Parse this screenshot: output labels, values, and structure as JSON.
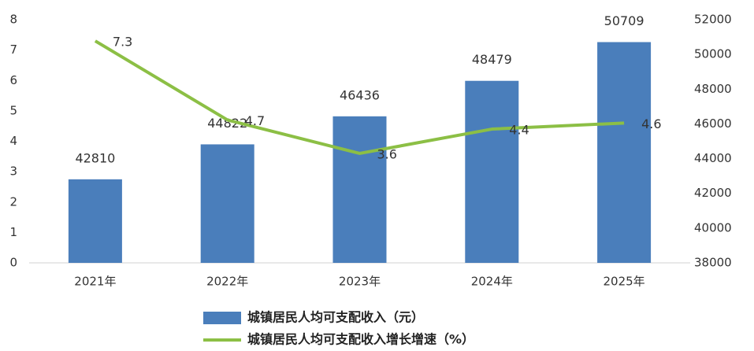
{
  "chart_data": {
    "type": "bar",
    "categories": [
      "2021年",
      "2022年",
      "2023年",
      "2024年",
      "2025年"
    ],
    "series": [
      {
        "name": "城镇居民人均可支配收入（元）",
        "type": "bar",
        "axis": "y2",
        "color": "#4a7ebb",
        "values": [
          42810,
          44822,
          46436,
          48479,
          50709
        ]
      },
      {
        "name": "城镇居民人均可支配收入增长增速（%）",
        "type": "line",
        "axis": "y",
        "color": "#8cbf45",
        "values": [
          7.3,
          4.7,
          3.6,
          4.4,
          4.6
        ]
      }
    ],
    "ylim": [
      0,
      8
    ],
    "yticks": [
      0,
      1,
      2,
      3,
      4,
      5,
      6,
      7,
      8
    ],
    "y2lim": [
      38000,
      52000
    ],
    "y2ticks": [
      38000,
      40000,
      42000,
      44000,
      46000,
      48000,
      50000,
      52000
    ],
    "grid": false,
    "legend": "bottom"
  }
}
